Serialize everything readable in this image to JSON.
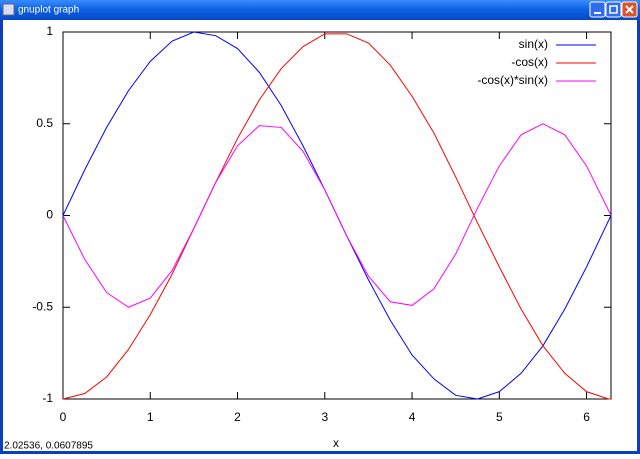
{
  "window": {
    "title": "gnuplot graph"
  },
  "status": "2.02536, 0.0607895",
  "chart_data": {
    "type": "line",
    "x_label": "x",
    "x": [
      0,
      0.25,
      0.5,
      0.75,
      1,
      1.25,
      1.5,
      1.75,
      2,
      2.25,
      2.5,
      2.75,
      3,
      3.25,
      3.5,
      3.75,
      4,
      4.25,
      4.5,
      4.75,
      5,
      5.25,
      5.5,
      5.75,
      6,
      6.25,
      6.28
    ],
    "series": [
      {
        "name": "sin(x)",
        "color": "#0000ff",
        "values": [
          0,
          0.25,
          0.48,
          0.68,
          0.84,
          0.95,
          1.0,
          0.98,
          0.91,
          0.78,
          0.6,
          0.38,
          0.14,
          -0.11,
          -0.35,
          -0.57,
          -0.76,
          -0.89,
          -0.98,
          -1.0,
          -0.96,
          -0.86,
          -0.71,
          -0.51,
          -0.28,
          -0.03,
          0
        ]
      },
      {
        "name": "-cos(x)",
        "color": "#ff0000",
        "values": [
          -1,
          -0.97,
          -0.88,
          -0.73,
          -0.54,
          -0.32,
          -0.07,
          0.18,
          0.42,
          0.63,
          0.8,
          0.92,
          0.99,
          0.99,
          0.94,
          0.82,
          0.65,
          0.45,
          0.21,
          -0.04,
          -0.28,
          -0.51,
          -0.71,
          -0.86,
          -0.96,
          -1.0,
          -1
        ]
      },
      {
        "name": "-cos(x)*sin(x)",
        "color": "#ff00ff",
        "values": [
          0,
          -0.24,
          -0.42,
          -0.5,
          -0.45,
          -0.3,
          -0.07,
          0.18,
          0.38,
          0.49,
          0.48,
          0.35,
          0.14,
          -0.11,
          -0.33,
          -0.47,
          -0.49,
          -0.4,
          -0.21,
          0.04,
          0.27,
          0.44,
          0.5,
          0.44,
          0.27,
          0.03,
          0
        ]
      }
    ],
    "xlim": [
      0,
      6.28
    ],
    "ylim": [
      -1,
      1
    ],
    "xticks": [
      0,
      1,
      2,
      3,
      4,
      5,
      6
    ],
    "yticks": [
      -1,
      -0.5,
      0,
      0.5,
      1
    ],
    "legend": "top-right"
  }
}
